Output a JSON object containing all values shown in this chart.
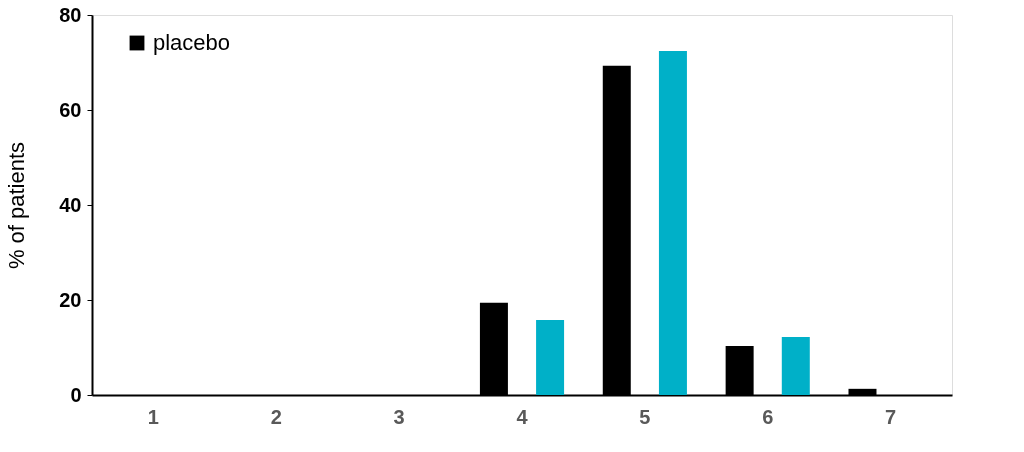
{
  "chart_data": {
    "type": "bar",
    "ylabel": "% of patients",
    "categories": [
      "1",
      "2",
      "3",
      "4",
      "5",
      "6",
      "7"
    ],
    "series": [
      {
        "name": "placebo",
        "color": "#000000",
        "values": [
          0,
          0,
          0,
          19.4,
          69.3,
          10.3,
          1.3
        ]
      },
      {
        "color": "#00b0c8",
        "values": [
          0,
          0,
          0,
          15.8,
          72.4,
          12.2,
          0
        ]
      }
    ],
    "ylim": [
      0,
      80
    ],
    "yticks": [
      0,
      20,
      40,
      60,
      80
    ],
    "grid": false,
    "legend": "top left"
  }
}
